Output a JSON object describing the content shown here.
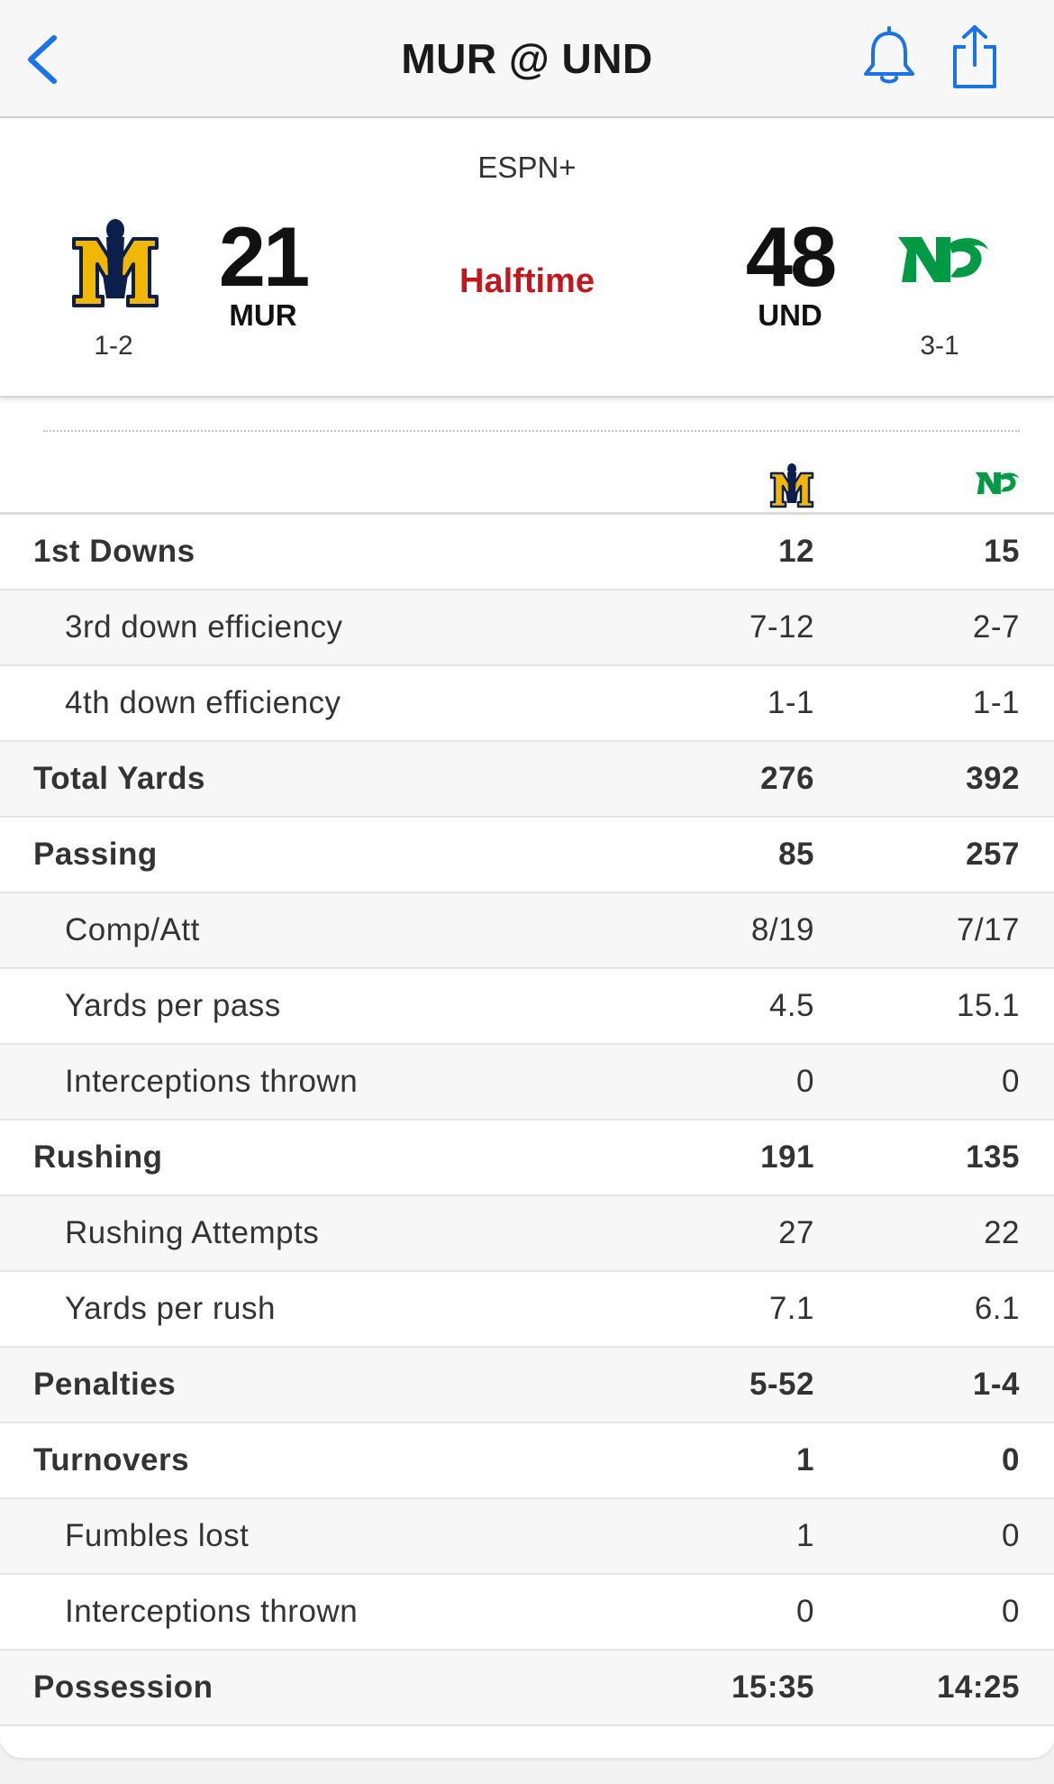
{
  "nav": {
    "title": "MUR @ UND",
    "back_icon": "chevron-left-icon",
    "bell_icon": "bell-icon",
    "share_icon": "share-icon",
    "accent": "#1a73e8"
  },
  "game": {
    "network": "ESPN+",
    "status": "Halftime",
    "status_color": "#c4161c",
    "away": {
      "abbr": "MUR",
      "score": "21",
      "record": "1-2",
      "logo": "murray-state-racers-logo"
    },
    "home": {
      "abbr": "UND",
      "score": "48",
      "record": "3-1",
      "logo": "north-dakota-fighting-hawks-logo"
    }
  },
  "stats": {
    "rows": [
      {
        "label": "1st Downs",
        "away": "12",
        "home": "15"
      },
      {
        "label": "3rd down efficiency",
        "away": "7-12",
        "home": "2-7"
      },
      {
        "label": "4th down efficiency",
        "away": "1-1",
        "home": "1-1"
      },
      {
        "label": "Total Yards",
        "away": "276",
        "home": "392"
      },
      {
        "label": "Passing",
        "away": "85",
        "home": "257"
      },
      {
        "label": "Comp/Att",
        "away": "8/19",
        "home": "7/17"
      },
      {
        "label": "Yards per pass",
        "away": "4.5",
        "home": "15.1"
      },
      {
        "label": "Interceptions thrown",
        "away": "0",
        "home": "0"
      },
      {
        "label": "Rushing",
        "away": "191",
        "home": "135"
      },
      {
        "label": "Rushing Attempts",
        "away": "27",
        "home": "22"
      },
      {
        "label": "Yards per rush",
        "away": "7.1",
        "home": "6.1"
      },
      {
        "label": "Penalties",
        "away": "5-52",
        "home": "1-4"
      },
      {
        "label": "Turnovers",
        "away": "1",
        "home": "0"
      },
      {
        "label": "Fumbles lost",
        "away": "1",
        "home": "0"
      },
      {
        "label": "Interceptions thrown",
        "away": "0",
        "home": "0"
      },
      {
        "label": "Possession",
        "away": "15:35",
        "home": "14:25"
      }
    ]
  }
}
